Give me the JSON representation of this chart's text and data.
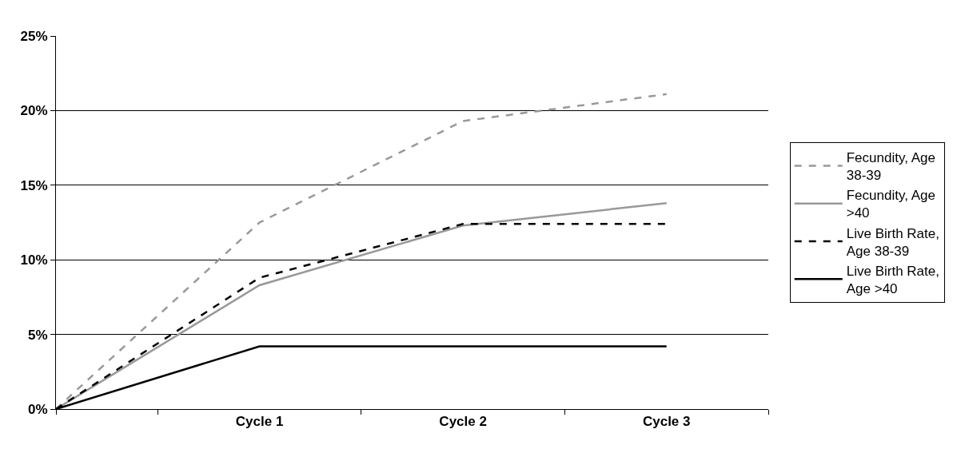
{
  "chart_data": {
    "type": "line",
    "categories": [
      null,
      "Cycle 1",
      "Cycle 2",
      "Cycle 3"
    ],
    "ylim": [
      0,
      25
    ],
    "yticks": [
      {
        "value": 0,
        "label": "0%"
      },
      {
        "value": 5,
        "label": "5%"
      },
      {
        "value": 10,
        "label": "10%"
      },
      {
        "value": 15,
        "label": "15%"
      },
      {
        "value": 20,
        "label": "20%"
      },
      {
        "value": 25,
        "label": "25%"
      }
    ],
    "grid": "y",
    "legend": "right",
    "marker": "none",
    "series": [
      {
        "name": "Fecundity, Age 38-39",
        "color": "#999999",
        "line_style": "dashed",
        "values": [
          0,
          12.5,
          19.3,
          21.1
        ]
      },
      {
        "name": "Fecundity, Age >40",
        "color": "#999999",
        "line_style": "solid",
        "values": [
          0,
          8.3,
          12.3,
          13.8
        ]
      },
      {
        "name": "Live Birth Rate, Age 38-39",
        "color": "#000000",
        "line_style": "dashed",
        "values": [
          0,
          8.8,
          12.4,
          12.4
        ]
      },
      {
        "name": "Live Birth Rate, Age >40",
        "color": "#000000",
        "line_style": "solid",
        "values": [
          0,
          4.2,
          4.2,
          4.2
        ]
      }
    ]
  }
}
